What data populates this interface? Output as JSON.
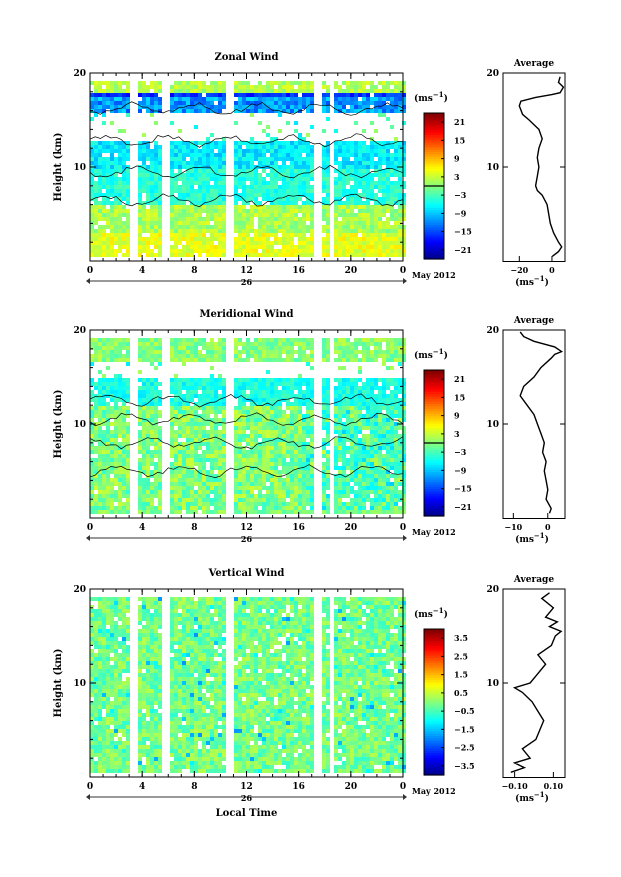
{
  "chart_data": [
    {
      "type": "heatmap",
      "title": "Zonal Wind",
      "ylabel": "Height (km)",
      "ylim": [
        0,
        20
      ],
      "y_ticks": [
        "10",
        "20"
      ],
      "x_ticks": [
        "0",
        "4",
        "8",
        "12",
        "16",
        "20",
        "0"
      ],
      "xlim": [
        0,
        24
      ],
      "date_label": "26",
      "date_suffix": "May 2012",
      "colorbar": {
        "unit_base": "(ms",
        "unit_exp": "−1",
        "unit_close": ")",
        "ticks": [
          "21",
          "15",
          "9",
          "3",
          "−3",
          "−9",
          "−15",
          "−21"
        ],
        "range": [
          -24,
          24
        ],
        "zero_line": true
      },
      "profile": {
        "title": "Average",
        "xlabel_base": "(ms",
        "xlabel_exp": "−1",
        "xlabel_close": ")",
        "xticks": [
          "−20",
          "0"
        ],
        "xlim": [
          -30,
          8
        ],
        "yticks": [
          "10",
          "20"
        ],
        "points": [
          [
            0.3,
            0.5
          ],
          [
            4,
            1
          ],
          [
            6,
            1.5
          ],
          [
            4,
            2
          ],
          [
            1,
            3
          ],
          [
            -1,
            4
          ],
          [
            -2,
            5
          ],
          [
            -3,
            6
          ],
          [
            -6,
            7
          ],
          [
            -9,
            7.5
          ],
          [
            -10,
            8
          ],
          [
            -9,
            9
          ],
          [
            -8,
            10
          ],
          [
            -9,
            11
          ],
          [
            -8,
            12
          ],
          [
            -6,
            13
          ],
          [
            -8,
            14
          ],
          [
            -14,
            15
          ],
          [
            -18,
            15.6
          ],
          [
            -20,
            16.5
          ],
          [
            -19,
            17
          ],
          [
            -10,
            17.4
          ],
          [
            0,
            17.7
          ],
          [
            5,
            17.9
          ],
          [
            7,
            18.5
          ],
          [
            4,
            19
          ],
          [
            5,
            19.6
          ]
        ]
      },
      "gaps": [
        [
          3.0,
          3.5
        ],
        [
          5.5,
          5.9
        ],
        [
          10.3,
          10.8
        ],
        [
          17.1,
          17.5
        ],
        [
          18.3,
          18.7
        ]
      ]
    },
    {
      "type": "heatmap",
      "title": "Meridional Wind",
      "ylabel": "Height (km)",
      "ylim": [
        0,
        20
      ],
      "y_ticks": [
        "10",
        "20"
      ],
      "x_ticks": [
        "0",
        "4",
        "8",
        "12",
        "16",
        "20",
        "0"
      ],
      "xlim": [
        0,
        24
      ],
      "date_label": "26",
      "date_suffix": "May 2012",
      "colorbar": {
        "unit_base": "(ms",
        "unit_exp": "−1",
        "unit_close": ")",
        "ticks": [
          "21",
          "15",
          "9",
          "3",
          "−3",
          "−9",
          "−15",
          "−21"
        ],
        "range": [
          -24,
          24
        ],
        "zero_line": true
      },
      "profile": {
        "title": "Average",
        "xlabel_base": "(ms",
        "xlabel_exp": "−1",
        "xlabel_close": ")",
        "xticks": [
          "−10",
          "0"
        ],
        "xlim": [
          -13,
          5
        ],
        "yticks": [
          "10",
          "20"
        ],
        "points": [
          [
            0.5,
            0.5
          ],
          [
            1,
            1
          ],
          [
            -0.5,
            2
          ],
          [
            0,
            3
          ],
          [
            -0.5,
            4
          ],
          [
            -1,
            5
          ],
          [
            -0.5,
            6
          ],
          [
            -1.5,
            7
          ],
          [
            -1,
            8
          ],
          [
            -2,
            9
          ],
          [
            -3,
            10
          ],
          [
            -4,
            11
          ],
          [
            -6,
            12
          ],
          [
            -8,
            13
          ],
          [
            -7,
            14
          ],
          [
            -4,
            15
          ],
          [
            -2,
            16
          ],
          [
            1,
            17
          ],
          [
            2,
            17.4
          ],
          [
            4,
            17.7
          ],
          [
            2,
            18.2
          ],
          [
            -4,
            18.8
          ],
          [
            -7,
            19.3
          ],
          [
            -8,
            19.8
          ]
        ]
      },
      "gaps": [
        [
          3.0,
          3.5
        ],
        [
          5.5,
          5.9
        ],
        [
          10.3,
          10.8
        ],
        [
          17.1,
          17.5
        ],
        [
          18.3,
          18.7
        ]
      ]
    },
    {
      "type": "heatmap",
      "title": "Vertical Wind",
      "xlabel": "Local Time",
      "ylabel": "Height (km)",
      "ylim": [
        0,
        20
      ],
      "y_ticks": [
        "10",
        "20"
      ],
      "x_ticks": [
        "0",
        "4",
        "8",
        "12",
        "16",
        "20",
        "0"
      ],
      "xlim": [
        0,
        24
      ],
      "date_label": "26",
      "date_suffix": "May 2012",
      "colorbar": {
        "unit_base": "(ms",
        "unit_exp": "−1",
        "unit_close": ")",
        "ticks": [
          "3.5",
          "2.5",
          "1.5",
          "0.5",
          "−0.5",
          "−1.5",
          "−2.5",
          "−3.5"
        ],
        "range": [
          -4,
          4
        ],
        "zero_line": false
      },
      "profile": {
        "title": "Average",
        "xlabel_base": "(ms",
        "xlabel_exp": "−1",
        "xlabel_close": ")",
        "xticks": [
          "−0.10",
          "0.10"
        ],
        "xlim": [
          -0.16,
          0.16
        ],
        "yticks": [
          "10",
          "20"
        ],
        "points": [
          [
            -0.12,
            0.5
          ],
          [
            -0.05,
            1
          ],
          [
            -0.1,
            1.5
          ],
          [
            -0.02,
            2
          ],
          [
            -0.06,
            3
          ],
          [
            0.01,
            4
          ],
          [
            0.03,
            5
          ],
          [
            0.05,
            6
          ],
          [
            0.02,
            7
          ],
          [
            -0.01,
            8
          ],
          [
            -0.06,
            9
          ],
          [
            -0.1,
            9.5
          ],
          [
            -0.02,
            10
          ],
          [
            0.02,
            11
          ],
          [
            0.06,
            12
          ],
          [
            0.02,
            13
          ],
          [
            0.09,
            14
          ],
          [
            0.11,
            15
          ],
          [
            0.14,
            15.5
          ],
          [
            0.08,
            16
          ],
          [
            0.12,
            16.5
          ],
          [
            0.06,
            17
          ],
          [
            0.1,
            18
          ],
          [
            0.04,
            19
          ],
          [
            0.08,
            19.6
          ]
        ]
      },
      "gaps": [
        [
          3.0,
          3.5
        ],
        [
          5.5,
          5.9
        ],
        [
          10.3,
          10.8
        ],
        [
          17.1,
          17.5
        ],
        [
          18.3,
          18.7
        ]
      ]
    }
  ]
}
